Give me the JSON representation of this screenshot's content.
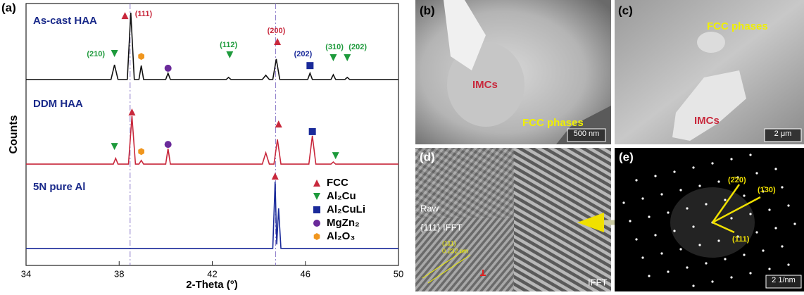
{
  "chart_data": {
    "type": "line",
    "panel_label": "(a)",
    "xlabel": "2-Theta (°)",
    "ylabel": "Counts",
    "xlim": [
      34,
      50
    ],
    "xticks": [
      34,
      38,
      42,
      46,
      50
    ],
    "ylim": [
      0,
      100
    ],
    "reference_lines": [
      38.47,
      44.72
    ],
    "series": [
      {
        "name": "As-cast HAA",
        "color": "#111111",
        "x": [
          34,
          37.65,
          37.8,
          37.95,
          38.35,
          38.5,
          38.65,
          38.85,
          38.95,
          39.05,
          40.0,
          40.1,
          40.2,
          42.6,
          42.7,
          42.8,
          44.15,
          44.3,
          44.45,
          44.6,
          44.75,
          44.9,
          46.1,
          46.2,
          46.3,
          47.1,
          47.2,
          47.3,
          47.7,
          47.8,
          47.9,
          50
        ],
        "values": [
          71,
          71,
          76.6,
          71,
          71,
          96.5,
          71,
          71,
          76.3,
          71,
          71,
          73.4,
          71,
          71,
          71.8,
          71,
          71,
          72.6,
          71,
          71,
          78.8,
          71,
          71,
          73.4,
          71,
          71,
          72.8,
          71,
          71,
          71.8,
          71,
          71
        ]
      },
      {
        "name": "DDM HAA",
        "color": "#c8283c",
        "x": [
          34,
          37.75,
          37.85,
          37.95,
          38.4,
          38.55,
          38.7,
          38.85,
          38.95,
          39.05,
          40.0,
          40.1,
          40.2,
          44.15,
          44.3,
          44.45,
          44.65,
          44.8,
          44.95,
          46.15,
          46.3,
          46.45,
          47.1,
          47.2,
          47.3,
          50
        ],
        "values": [
          38.7,
          38.7,
          40.9,
          38.7,
          38.7,
          57,
          38.7,
          38.7,
          40.1,
          38.7,
          38.7,
          44.6,
          38.7,
          38.7,
          43,
          38.7,
          38.7,
          48.1,
          38.7,
          38.7,
          49.5,
          38.7,
          38.7,
          39.5,
          38.7,
          38.7
        ]
      },
      {
        "name": "5N pure Al",
        "color": "#1a2a9a",
        "x": [
          34,
          44.6,
          44.7,
          44.77,
          44.85,
          44.95,
          50
        ],
        "values": [
          6.5,
          6.5,
          32,
          8,
          21.8,
          6.5,
          6.5
        ]
      }
    ],
    "phases": [
      {
        "name": "FCC",
        "color": "#c8283c",
        "shape": "triangle-up",
        "points": [
          {
            "x": 38.25,
            "y": 95.4
          },
          {
            "x": 44.8,
            "y": 85.5
          },
          {
            "x": 38.55,
            "y": 58.6
          },
          {
            "x": 44.85,
            "y": 54
          },
          {
            "x": 44.7,
            "y": 34.1
          }
        ]
      },
      {
        "name": "Al₂Cu",
        "color": "#1e9a3c",
        "shape": "triangle-down",
        "points": [
          {
            "x": 37.8,
            "y": 80.9
          },
          {
            "x": 42.75,
            "y": 80.4
          },
          {
            "x": 47.2,
            "y": 79.3
          },
          {
            "x": 47.8,
            "y": 79.3
          },
          {
            "x": 37.8,
            "y": 45.4
          },
          {
            "x": 47.3,
            "y": 41.9
          }
        ]
      },
      {
        "name": "Al₂CuLi",
        "color": "#1a2a9a",
        "shape": "square",
        "points": [
          {
            "x": 46.2,
            "y": 76.3
          },
          {
            "x": 46.3,
            "y": 51.1
          }
        ]
      },
      {
        "name": "MgZn₂",
        "color": "#6a2a9a",
        "shape": "circle",
        "points": [
          {
            "x": 40.1,
            "y": 75.3
          },
          {
            "x": 40.1,
            "y": 46.2
          }
        ]
      },
      {
        "name": "Al₂O₃",
        "color": "#f0961e",
        "shape": "hexagon",
        "points": [
          {
            "x": 38.95,
            "y": 79.8
          },
          {
            "x": 38.95,
            "y": 43.5
          }
        ]
      }
    ],
    "annotations": [
      {
        "text": "(111)",
        "color": "#c8283c",
        "x": 39.05,
        "y": 96
      },
      {
        "text": "(210)",
        "color": "#1e9a3c",
        "x": 37.0,
        "y": 80.6
      },
      {
        "text": "(112)",
        "color": "#1e9a3c",
        "x": 42.7,
        "y": 84.1
      },
      {
        "text": "(200)",
        "color": "#c8283c",
        "x": 44.75,
        "y": 89.5
      },
      {
        "text": "(202)",
        "color": "#1a2a9a",
        "x": 45.9,
        "y": 80.6
      },
      {
        "text": "(310)",
        "color": "#1e9a3c",
        "x": 47.25,
        "y": 83.3
      },
      {
        "text": "(202)",
        "color": "#1e9a3c",
        "x": 48.25,
        "y": 83.3
      }
    ]
  },
  "images": [
    {
      "label": "(b)",
      "texts": [
        "IMCs",
        "FCC phases"
      ],
      "scale_bar": "500 nm"
    },
    {
      "label": "(c)",
      "texts": [
        "FCC phases",
        "IMCs"
      ],
      "scale_bar": "2 μm"
    },
    {
      "label": "(d)",
      "texts": [
        "Raw",
        "{111} IFFT",
        "IFFT",
        "(111)",
        "0.232 nm"
      ]
    },
    {
      "label": "(e)",
      "texts": [
        "(2̄20)",
        "(1̄30)",
        "(111)"
      ],
      "scale_bar": "2 1/nm"
    }
  ]
}
